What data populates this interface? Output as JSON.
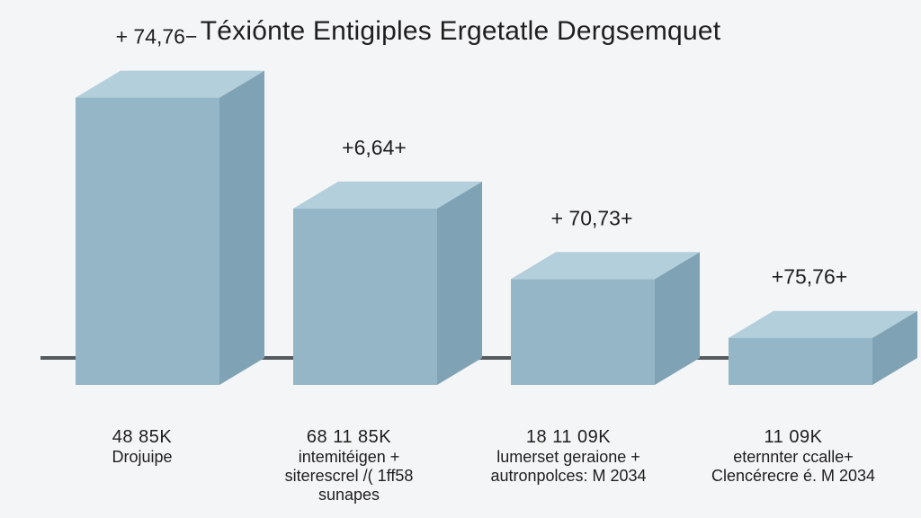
{
  "chart_data": {
    "type": "bar",
    "title": "Téxiónte Entigiples Ergetatle Dergsemquet",
    "xlabel": "",
    "ylabel": "",
    "categories": [
      {
        "value": "48 85K",
        "label": [
          "Drojuipe"
        ]
      },
      {
        "value": "68 11 85K",
        "label": [
          "intemitéigen +",
          "siterescrel /( 1ff58",
          "sunapes"
        ]
      },
      {
        "value": "18 11 09K",
        "label": [
          "lumerset geraione +",
          "autronpolces: M 2034"
        ]
      },
      {
        "value": "11 09K",
        "label": [
          "eternnter ccalle+",
          "Clencérecre é. M 2034"
        ]
      }
    ],
    "values": [
      48.85,
      30,
      18,
      8
    ],
    "data_labels": [
      "+ 74,76−",
      "+6,64+",
      "+ 70,73+",
      "+75,76+"
    ],
    "ylim": [
      0,
      52
    ],
    "grid": false,
    "legend": "none"
  },
  "colors": {
    "bar_front": "#94b6c7",
    "bar_top": "#b3cfdc",
    "bar_side": "#7fa3b5",
    "axis": "#555a5f",
    "text": "#1e1e1e"
  }
}
